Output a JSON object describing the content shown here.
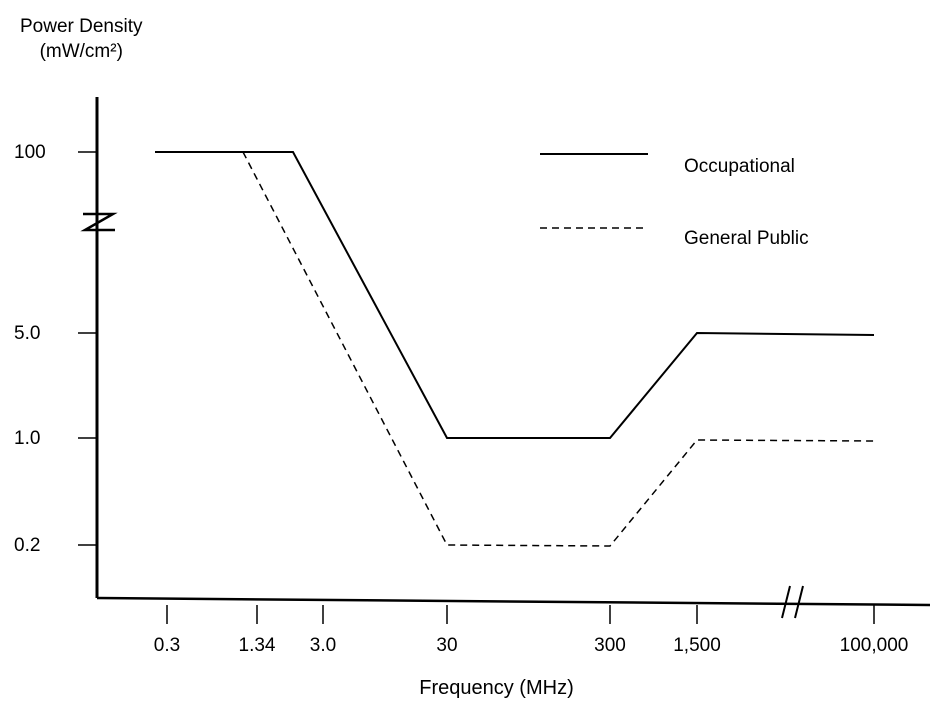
{
  "chart_data": {
    "type": "line",
    "ylabel_line1": "Power Density",
    "ylabel_line2": "(mW/cm²)",
    "xlabel": "Frequency (MHz)",
    "x_tick_labels": [
      "0.3",
      "1.34",
      "3.0",
      "30",
      "300",
      "1,500",
      "100,000"
    ],
    "y_tick_labels": [
      "100",
      "5.0",
      "1.0",
      "0.2"
    ],
    "x_scale": "log (broken axis between 1,500 and 100,000)",
    "y_scale": "non-linear (broken axis between 5.0 and 100)",
    "series": [
      {
        "name": "Occupational",
        "style": "solid",
        "x": [
          0.3,
          1.34,
          3.0,
          30,
          300,
          1500,
          100000
        ],
        "y": [
          100,
          100,
          100,
          1.0,
          1.0,
          5.0,
          5.0
        ],
        "x_knot_after_3": 3.0,
        "points": [
          [
            0.3,
            100
          ],
          [
            3.0,
            100
          ],
          [
            30,
            1.0
          ],
          [
            300,
            1.0
          ],
          [
            1500,
            5.0
          ],
          [
            100000,
            5.0
          ]
        ]
      },
      {
        "name": "General Public",
        "style": "dashed",
        "points": [
          [
            0.3,
            100
          ],
          [
            1.34,
            100
          ],
          [
            30,
            0.2
          ],
          [
            300,
            0.2
          ],
          [
            1500,
            1.0
          ],
          [
            100000,
            1.0
          ]
        ]
      }
    ],
    "legend": {
      "position": "top-right",
      "entries": [
        "Occupational",
        "General Public"
      ]
    },
    "grid": false,
    "colors": {
      "line": "#000000",
      "background": "#ffffff"
    }
  }
}
